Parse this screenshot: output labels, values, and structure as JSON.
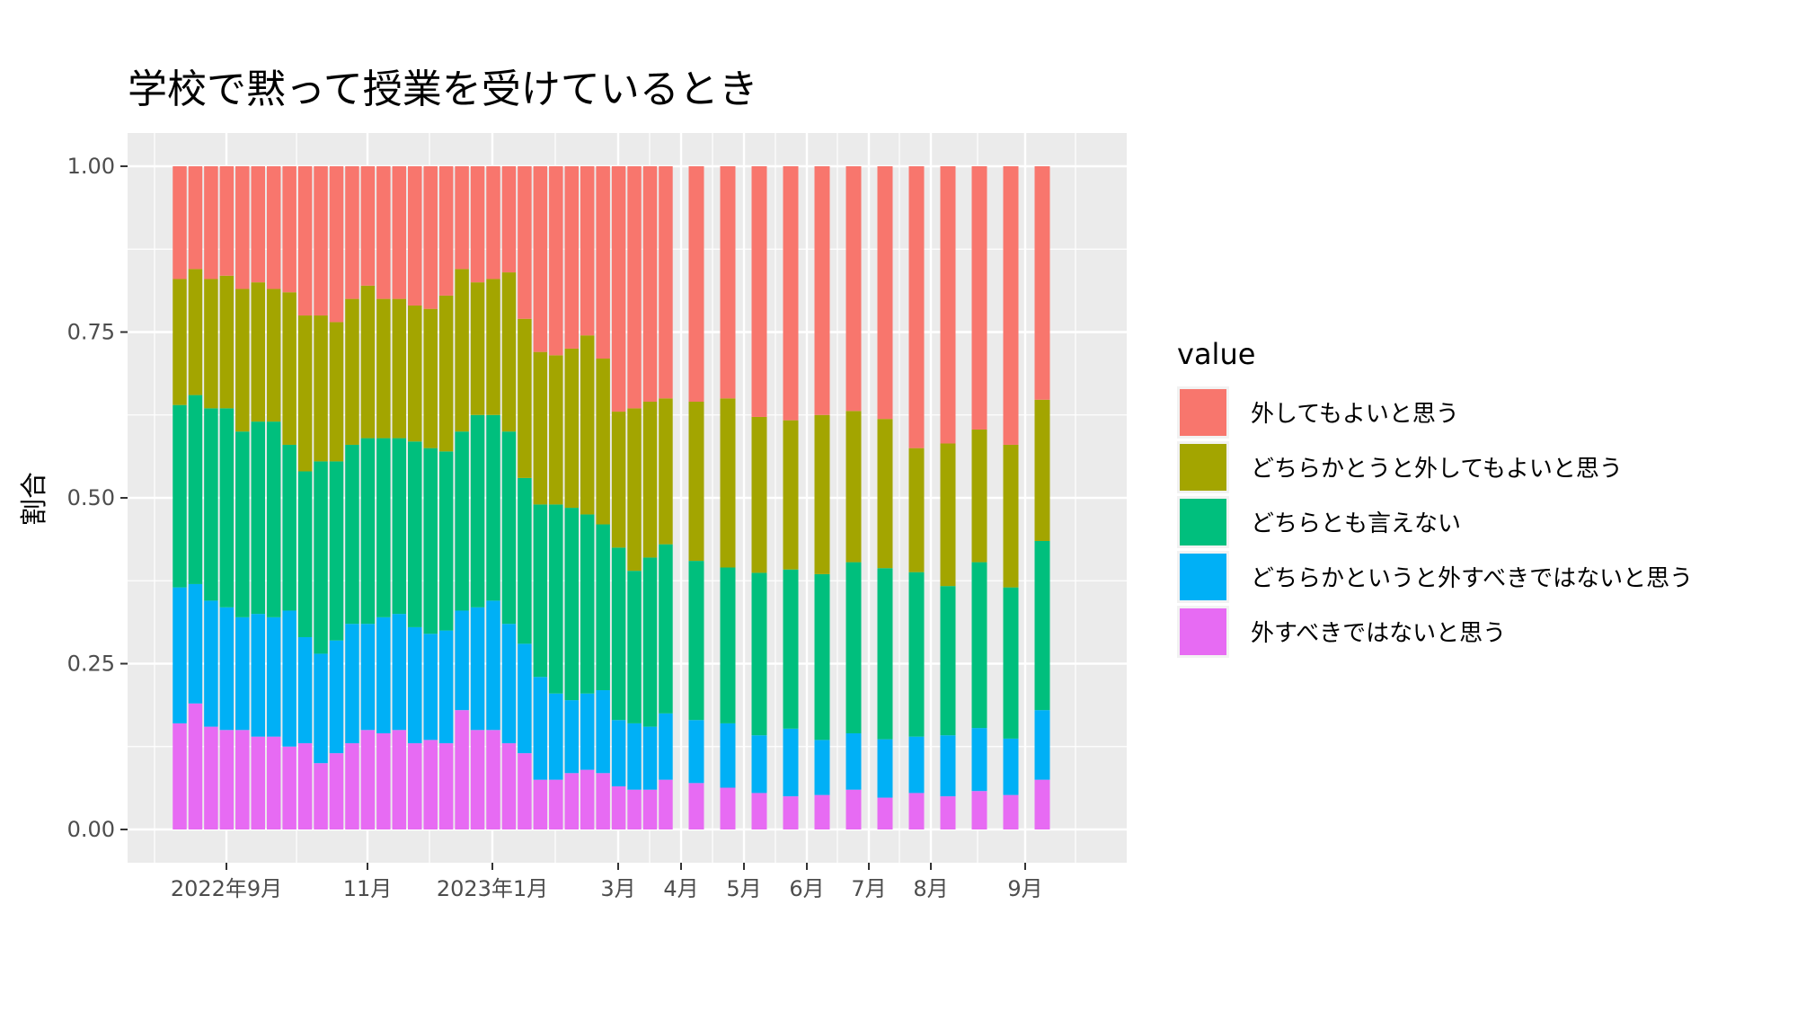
{
  "chart_data": {
    "type": "bar",
    "stacked": "fill",
    "title": "学校で黙って授業を受けているとき",
    "xlabel": "",
    "ylabel": "割合",
    "ylim": [
      0,
      1
    ],
    "y_ticks": [
      "0.00",
      "0.25",
      "0.50",
      "0.75",
      "1.00"
    ],
    "x_ticks": [
      "2022年9月",
      "11月",
      "2023年1月",
      "3月",
      "4月",
      "5月",
      "6月",
      "7月",
      "8月",
      "9月"
    ],
    "grid": true,
    "legend": {
      "title": "value",
      "position": "right",
      "entries": [
        {
          "label": "外してもよいと思う",
          "color": "#F8766D"
        },
        {
          "label": "どちらかとうと外してもよいと思う",
          "color": "#A3A500"
        },
        {
          "label": "どちらとも言えない",
          "color": "#00BF7D"
        },
        {
          "label": "どちらかというと外すべきではないと思う",
          "color": "#00B0F6"
        },
        {
          "label": "外すべきではないと思う",
          "color": "#E76BF3"
        }
      ]
    },
    "series": [
      {
        "name": "外すべきではないと思う",
        "values": [
          0.16,
          0.19,
          0.155,
          0.15,
          0.15,
          0.14,
          0.14,
          0.125,
          0.13,
          0.1,
          0.115,
          0.13,
          0.15,
          0.145,
          0.15,
          0.13,
          0.135,
          0.13,
          0.18,
          0.15,
          0.15,
          0.13,
          0.115,
          0.075,
          0.075,
          0.085,
          0.09,
          0.085,
          0.065,
          0.06,
          0.06,
          0.075,
          0.07,
          0.063,
          0.055,
          0.05,
          0.052,
          0.06,
          0.048,
          0.055,
          0.05,
          0.058,
          0.052,
          0.075
        ]
      },
      {
        "name": "どちらかというと外すべきではないと思う",
        "values": [
          0.205,
          0.18,
          0.19,
          0.185,
          0.17,
          0.185,
          0.18,
          0.205,
          0.16,
          0.165,
          0.17,
          0.18,
          0.16,
          0.175,
          0.175,
          0.175,
          0.16,
          0.17,
          0.15,
          0.185,
          0.195,
          0.18,
          0.165,
          0.155,
          0.13,
          0.11,
          0.115,
          0.125,
          0.1,
          0.1,
          0.095,
          0.1,
          0.095,
          0.097,
          0.087,
          0.102,
          0.083,
          0.085,
          0.088,
          0.085,
          0.092,
          0.095,
          0.085,
          0.105
        ]
      },
      {
        "name": "どちらとも言えない",
        "values": [
          0.275,
          0.285,
          0.29,
          0.3,
          0.28,
          0.29,
          0.295,
          0.25,
          0.25,
          0.29,
          0.27,
          0.27,
          0.28,
          0.27,
          0.265,
          0.28,
          0.28,
          0.27,
          0.27,
          0.29,
          0.28,
          0.29,
          0.25,
          0.26,
          0.285,
          0.29,
          0.27,
          0.25,
          0.26,
          0.23,
          0.255,
          0.255,
          0.24,
          0.235,
          0.245,
          0.24,
          0.25,
          0.258,
          0.258,
          0.248,
          0.225,
          0.25,
          0.228,
          0.255
        ]
      },
      {
        "name": "どちらかとうと外してもよいと思う",
        "values": [
          0.19,
          0.19,
          0.195,
          0.2,
          0.215,
          0.21,
          0.2,
          0.23,
          0.235,
          0.22,
          0.21,
          0.22,
          0.23,
          0.21,
          0.21,
          0.205,
          0.21,
          0.235,
          0.245,
          0.2,
          0.205,
          0.24,
          0.24,
          0.23,
          0.225,
          0.24,
          0.27,
          0.25,
          0.205,
          0.245,
          0.235,
          0.22,
          0.24,
          0.255,
          0.235,
          0.225,
          0.24,
          0.228,
          0.225,
          0.187,
          0.215,
          0.2,
          0.215,
          0.213
        ]
      },
      {
        "name": "外してもよいと思う",
        "values": [
          0.17,
          0.155,
          0.17,
          0.165,
          0.185,
          0.175,
          0.185,
          0.19,
          0.225,
          0.225,
          0.235,
          0.2,
          0.18,
          0.2,
          0.2,
          0.21,
          0.215,
          0.195,
          0.155,
          0.175,
          0.17,
          0.16,
          0.23,
          0.28,
          0.285,
          0.275,
          0.255,
          0.29,
          0.37,
          0.365,
          0.355,
          0.35,
          0.355,
          0.35,
          0.378,
          0.383,
          0.375,
          0.369,
          0.381,
          0.425,
          0.418,
          0.397,
          0.42,
          0.352
        ]
      }
    ]
  }
}
